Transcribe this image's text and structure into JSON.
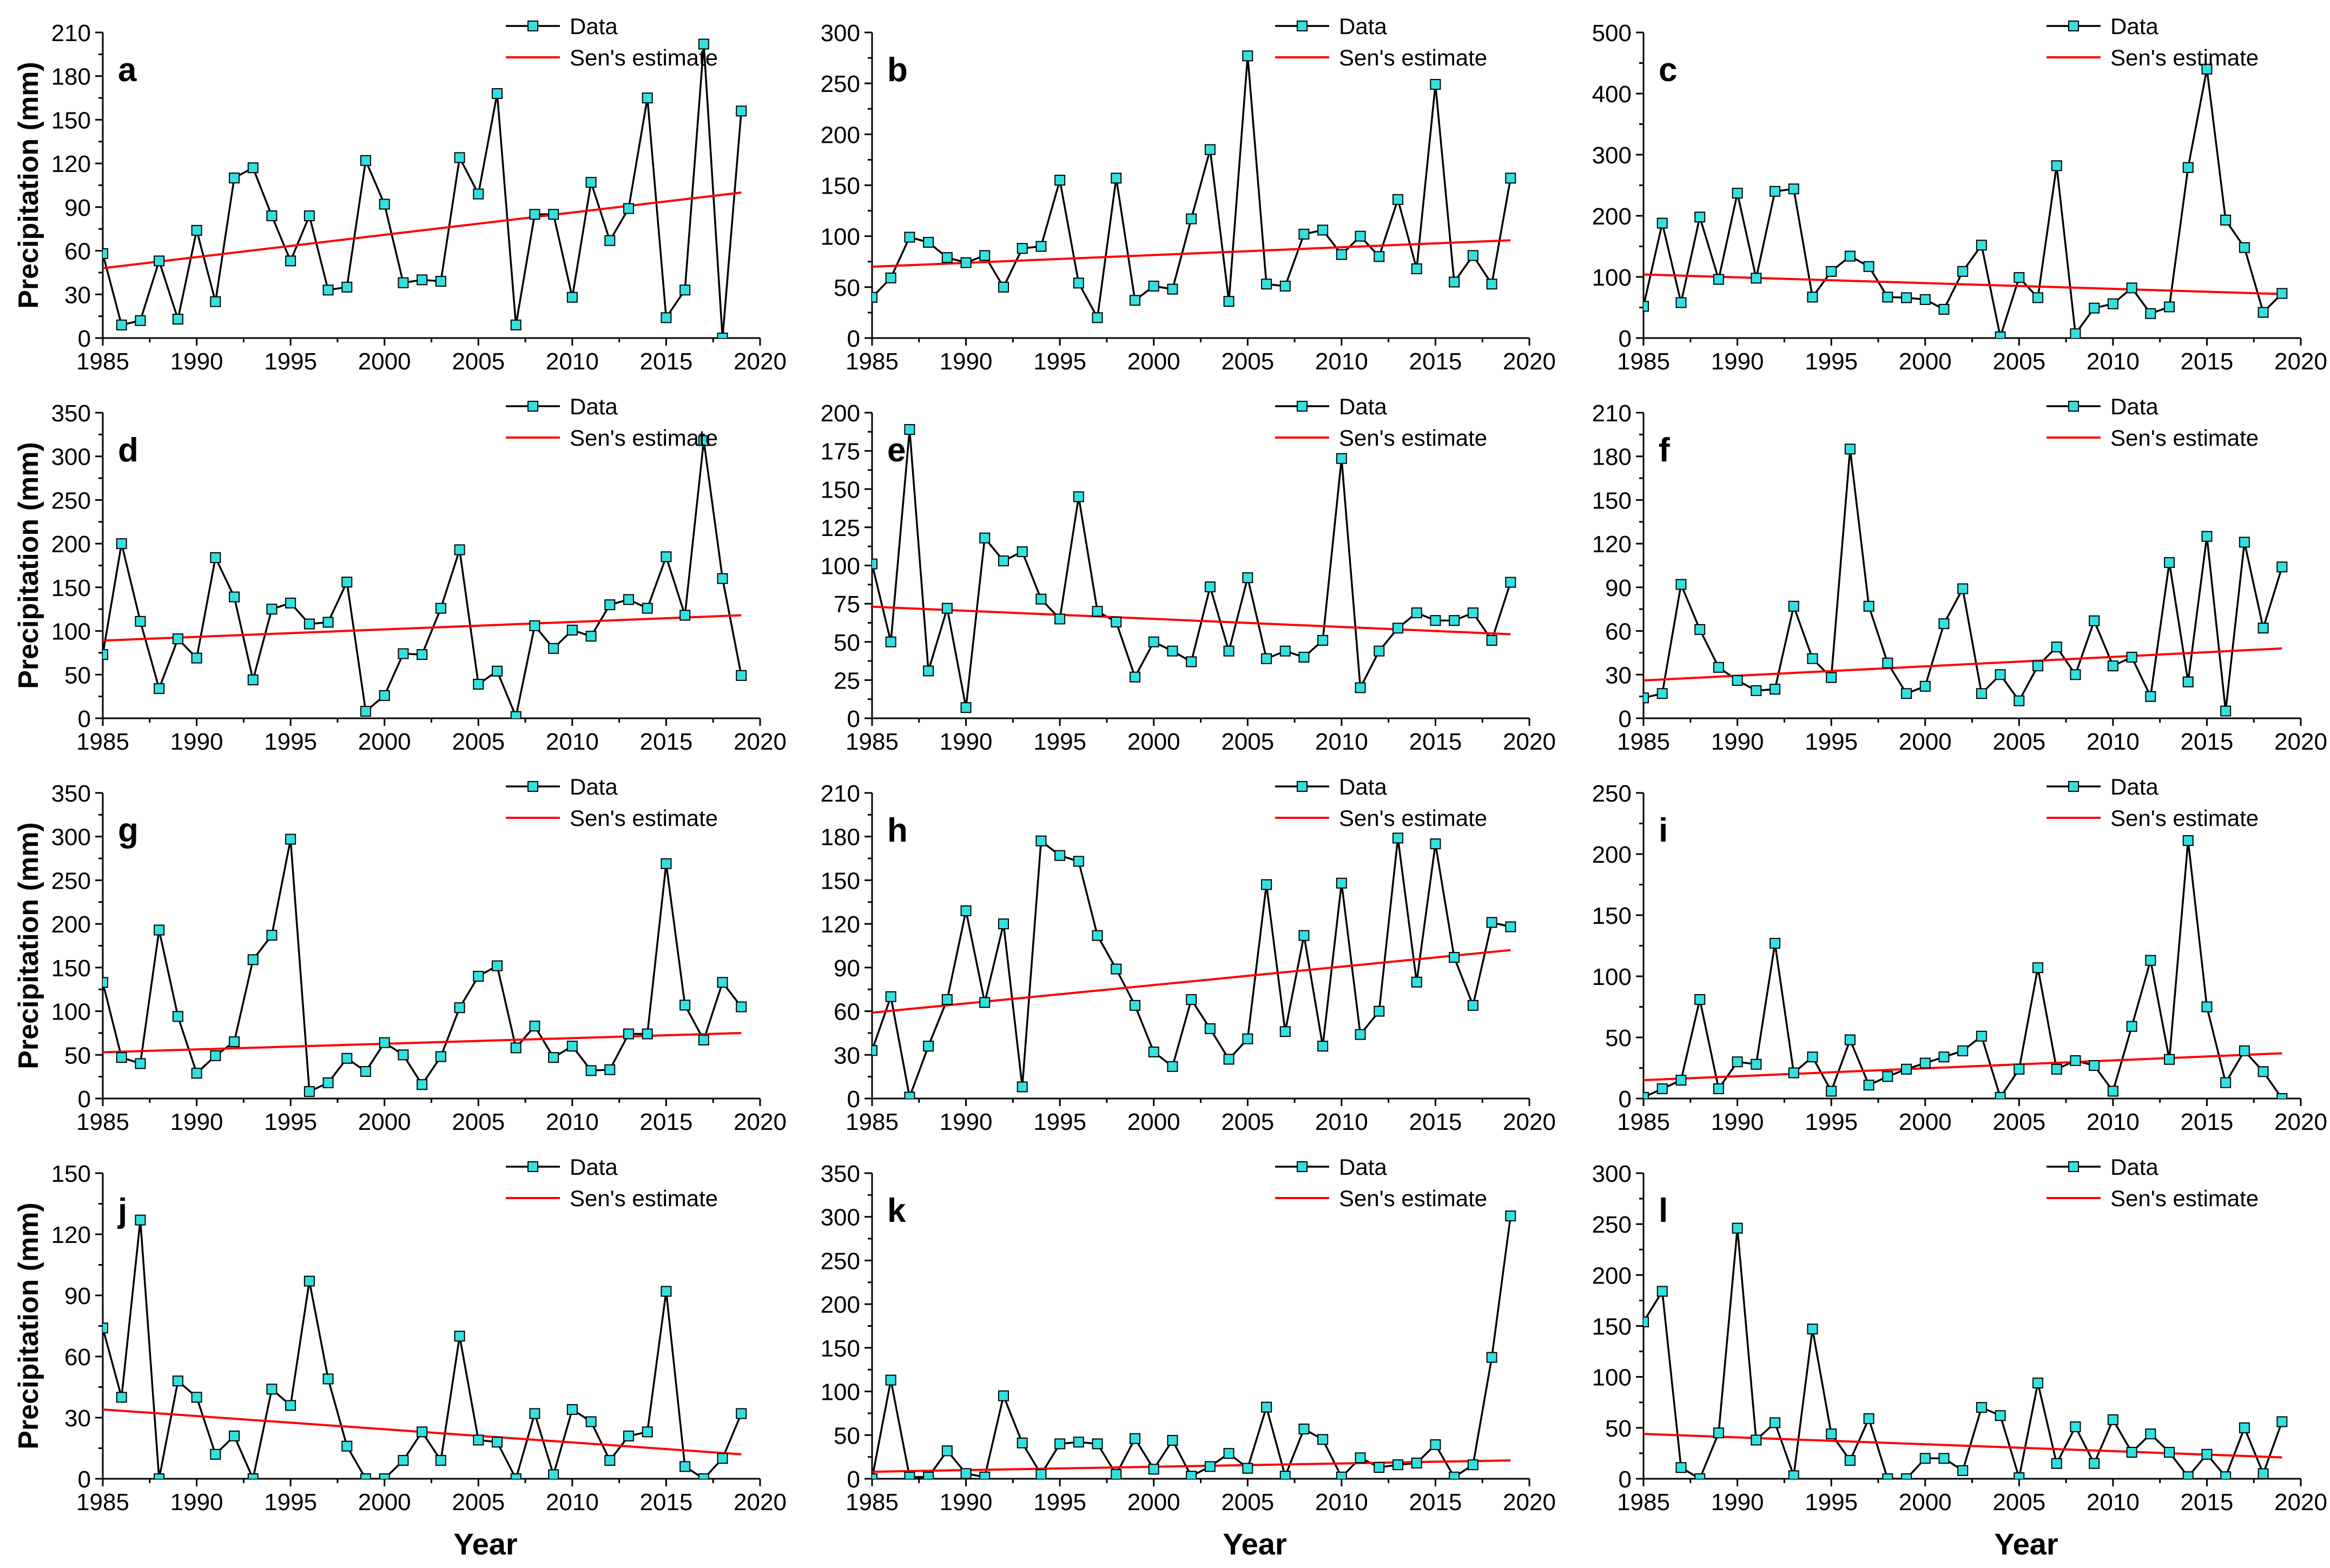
{
  "figure": {
    "y_axis_label": "Precipitation (mm)",
    "x_axis_label": "Year",
    "legend_data": "Data",
    "legend_trend": "Sen's estimate",
    "colors": {
      "data_marker": "#33e0e0",
      "data_line": "#000000",
      "trend_line": "#ff0000"
    }
  },
  "chart_data": [
    {
      "panel": "a",
      "type": "line",
      "xlim": [
        1985,
        2020
      ],
      "xticks": [
        1985,
        1990,
        1995,
        2000,
        2005,
        2010,
        2015,
        2020
      ],
      "ylim": [
        0,
        210
      ],
      "yticks": [
        0,
        30,
        60,
        90,
        120,
        150,
        180,
        210
      ],
      "ylabel": "Precipitation (mm)",
      "xlabel": "",
      "x": [
        1985,
        1986,
        1987,
        1988,
        1989,
        1990,
        1991,
        1992,
        1993,
        1994,
        1995,
        1996,
        1997,
        1998,
        1999,
        2000,
        2001,
        2002,
        2003,
        2004,
        2005,
        2006,
        2007,
        2008,
        2009,
        2010,
        2011,
        2012,
        2013,
        2014,
        2015,
        2016,
        2017,
        2018,
        2019
      ],
      "values": [
        58,
        9,
        12,
        53,
        13,
        74,
        25,
        110,
        117,
        84,
        53,
        84,
        33,
        35,
        122,
        92,
        38,
        40,
        39,
        124,
        99,
        168,
        9,
        85,
        85,
        28,
        107,
        67,
        89,
        165,
        14,
        33,
        202,
        0,
        156
      ],
      "trend": {
        "name": "Sen's estimate",
        "x": [
          1985,
          2019
        ],
        "y": [
          48,
          100
        ]
      }
    },
    {
      "panel": "b",
      "type": "line",
      "xlim": [
        1985,
        2020
      ],
      "xticks": [
        1985,
        1990,
        1995,
        2000,
        2005,
        2010,
        2015,
        2020
      ],
      "ylim": [
        0,
        300
      ],
      "yticks": [
        0,
        50,
        100,
        150,
        200,
        250,
        300
      ],
      "ylabel": "",
      "xlabel": "",
      "x": [
        1985,
        1986,
        1987,
        1988,
        1989,
        1990,
        1991,
        1992,
        1993,
        1994,
        1995,
        1996,
        1997,
        1998,
        1999,
        2000,
        2001,
        2002,
        2003,
        2004,
        2005,
        2006,
        2007,
        2008,
        2009,
        2010,
        2011,
        2012,
        2013,
        2014,
        2015,
        2016,
        2017,
        2018,
        2019
      ],
      "values": [
        40,
        59,
        99,
        94,
        79,
        74,
        81,
        50,
        88,
        90,
        155,
        54,
        20,
        157,
        37,
        51,
        48,
        117,
        185,
        36,
        277,
        53,
        51,
        102,
        106,
        82,
        100,
        80,
        136,
        68,
        249,
        55,
        81,
        53,
        157
      ],
      "trend": {
        "name": "Sen's estimate",
        "x": [
          1985,
          2019
        ],
        "y": [
          70,
          96
        ]
      }
    },
    {
      "panel": "c",
      "type": "line",
      "xlim": [
        1985,
        2020
      ],
      "xticks": [
        1985,
        1990,
        1995,
        2000,
        2005,
        2010,
        2015,
        2020
      ],
      "ylim": [
        0,
        500
      ],
      "yticks": [
        0,
        100,
        200,
        300,
        400,
        500
      ],
      "ylabel": "",
      "xlabel": "",
      "x": [
        1985,
        1986,
        1987,
        1988,
        1989,
        1990,
        1991,
        1992,
        1993,
        1994,
        1995,
        1996,
        1997,
        1998,
        1999,
        2000,
        2001,
        2002,
        2003,
        2004,
        2005,
        2006,
        2007,
        2008,
        2009,
        2010,
        2011,
        2012,
        2013,
        2014,
        2015,
        2016,
        2017,
        2018,
        2019
      ],
      "values": [
        52,
        188,
        58,
        198,
        96,
        237,
        98,
        240,
        244,
        67,
        109,
        134,
        117,
        67,
        66,
        63,
        47,
        109,
        152,
        2,
        99,
        66,
        282,
        7,
        49,
        56,
        82,
        40,
        51,
        279,
        440,
        193,
        148,
        42,
        73
      ],
      "trend": {
        "name": "Sen's estimate",
        "x": [
          1985,
          2019
        ],
        "y": [
          104,
          72
        ]
      }
    },
    {
      "panel": "d",
      "type": "line",
      "xlim": [
        1985,
        2020
      ],
      "xticks": [
        1985,
        1990,
        1995,
        2000,
        2005,
        2010,
        2015,
        2020
      ],
      "ylim": [
        0,
        350
      ],
      "yticks": [
        0,
        50,
        100,
        150,
        200,
        250,
        300,
        350
      ],
      "ylabel": "Precipitation (mm)",
      "xlabel": "",
      "x": [
        1985,
        1986,
        1987,
        1988,
        1989,
        1990,
        1991,
        1992,
        1993,
        1994,
        1995,
        1996,
        1997,
        1998,
        1999,
        2000,
        2001,
        2002,
        2003,
        2004,
        2005,
        2006,
        2007,
        2008,
        2009,
        2010,
        2011,
        2012,
        2013,
        2014,
        2015,
        2016,
        2017,
        2018,
        2019
      ],
      "values": [
        73,
        200,
        111,
        34,
        91,
        69,
        184,
        139,
        44,
        125,
        132,
        108,
        110,
        156,
        8,
        26,
        74,
        73,
        126,
        193,
        39,
        54,
        2,
        106,
        80,
        101,
        94,
        130,
        136,
        126,
        185,
        118,
        318,
        160,
        49
      ],
      "trend": {
        "name": "Sen's estimate",
        "x": [
          1985,
          2019
        ],
        "y": [
          89,
          118
        ]
      }
    },
    {
      "panel": "e",
      "type": "line",
      "xlim": [
        1985,
        2020
      ],
      "xticks": [
        1985,
        1990,
        1995,
        2000,
        2005,
        2010,
        2015,
        2020
      ],
      "ylim": [
        0,
        200
      ],
      "yticks": [
        0,
        25,
        50,
        75,
        100,
        125,
        150,
        175,
        200
      ],
      "ylabel": "",
      "xlabel": "",
      "x": [
        1985,
        1986,
        1987,
        1988,
        1989,
        1990,
        1991,
        1992,
        1993,
        1994,
        1995,
        1996,
        1997,
        1998,
        1999,
        2000,
        2001,
        2002,
        2003,
        2004,
        2005,
        2006,
        2007,
        2008,
        2009,
        2010,
        2011,
        2012,
        2013,
        2014,
        2015,
        2016,
        2017,
        2018,
        2019
      ],
      "values": [
        101,
        50,
        189,
        31,
        72,
        7,
        118,
        103,
        109,
        78,
        65,
        145,
        70,
        63,
        27,
        50,
        44,
        37,
        86,
        44,
        92,
        39,
        44,
        40,
        51,
        170,
        20,
        44,
        59,
        69,
        64,
        64,
        69,
        51,
        89
      ],
      "trend": {
        "name": "Sen's estimate",
        "x": [
          1985,
          2019
        ],
        "y": [
          73,
          55
        ]
      }
    },
    {
      "panel": "f",
      "type": "line",
      "xlim": [
        1985,
        2020
      ],
      "xticks": [
        1985,
        1990,
        1995,
        2000,
        2005,
        2010,
        2015,
        2020
      ],
      "ylim": [
        0,
        210
      ],
      "yticks": [
        0,
        30,
        60,
        90,
        120,
        150,
        180,
        210
      ],
      "ylabel": "",
      "xlabel": "",
      "x": [
        1985,
        1986,
        1987,
        1988,
        1989,
        1990,
        1991,
        1992,
        1993,
        1994,
        1995,
        1996,
        1997,
        1998,
        1999,
        2000,
        2001,
        2002,
        2003,
        2004,
        2005,
        2006,
        2007,
        2008,
        2009,
        2010,
        2011,
        2012,
        2013,
        2014,
        2015,
        2016,
        2017,
        2018,
        2019
      ],
      "values": [
        14,
        17,
        92,
        61,
        35,
        26,
        19,
        20,
        77,
        41,
        28,
        185,
        77,
        38,
        17,
        22,
        65,
        89,
        17,
        30,
        12,
        36,
        49,
        30,
        67,
        36,
        42,
        15,
        107,
        25,
        125,
        5,
        121,
        62,
        104
      ],
      "trend": {
        "name": "Sen's estimate",
        "x": [
          1985,
          2019
        ],
        "y": [
          26,
          48
        ]
      }
    },
    {
      "panel": "g",
      "type": "line",
      "xlim": [
        1985,
        2020
      ],
      "xticks": [
        1985,
        1990,
        1995,
        2000,
        2005,
        2010,
        2015,
        2020
      ],
      "ylim": [
        0,
        350
      ],
      "yticks": [
        0,
        50,
        100,
        150,
        200,
        250,
        300,
        350
      ],
      "ylabel": "Precipitation (mm)",
      "xlabel": "",
      "x": [
        1985,
        1986,
        1987,
        1988,
        1989,
        1990,
        1991,
        1992,
        1993,
        1994,
        1995,
        1996,
        1997,
        1998,
        1999,
        2000,
        2001,
        2002,
        2003,
        2004,
        2005,
        2006,
        2007,
        2008,
        2009,
        2010,
        2011,
        2012,
        2013,
        2014,
        2015,
        2016,
        2017,
        2018,
        2019
      ],
      "values": [
        133,
        47,
        40,
        193,
        94,
        29,
        49,
        65,
        159,
        187,
        297,
        8,
        18,
        46,
        31,
        64,
        50,
        16,
        48,
        104,
        140,
        152,
        58,
        83,
        47,
        60,
        32,
        33,
        74,
        74,
        269,
        107,
        67,
        133,
        105
      ],
      "trend": {
        "name": "Sen's estimate",
        "x": [
          1985,
          2019
        ],
        "y": [
          53,
          75
        ]
      }
    },
    {
      "panel": "h",
      "type": "line",
      "xlim": [
        1985,
        2020
      ],
      "xticks": [
        1985,
        1990,
        1995,
        2000,
        2005,
        2010,
        2015,
        2020
      ],
      "ylim": [
        0,
        210
      ],
      "yticks": [
        0,
        30,
        60,
        90,
        120,
        150,
        180,
        210
      ],
      "ylabel": "",
      "xlabel": "",
      "x": [
        1985,
        1986,
        1987,
        1988,
        1989,
        1990,
        1991,
        1992,
        1993,
        1994,
        1995,
        1996,
        1997,
        1998,
        1999,
        2000,
        2001,
        2002,
        2003,
        2004,
        2005,
        2006,
        2007,
        2008,
        2009,
        2010,
        2011,
        2012,
        2013,
        2014,
        2015,
        2016,
        2017,
        2018,
        2019
      ],
      "values": [
        33,
        70,
        1,
        36,
        68,
        129,
        66,
        120,
        8,
        177,
        167,
        163,
        112,
        89,
        64,
        32,
        22,
        68,
        48,
        27,
        41,
        147,
        46,
        112,
        36,
        148,
        44,
        60,
        179,
        80,
        175,
        97,
        64,
        121,
        118
      ],
      "trend": {
        "name": "Sen's estimate",
        "x": [
          1985,
          2019
        ],
        "y": [
          59,
          102
        ]
      }
    },
    {
      "panel": "i",
      "type": "line",
      "xlim": [
        1985,
        2020
      ],
      "xticks": [
        1985,
        1990,
        1995,
        2000,
        2005,
        2010,
        2015,
        2020
      ],
      "ylim": [
        0,
        250
      ],
      "yticks": [
        0,
        50,
        100,
        150,
        200,
        250
      ],
      "ylabel": "",
      "xlabel": "",
      "x": [
        1985,
        1986,
        1987,
        1988,
        1989,
        1990,
        1991,
        1992,
        1993,
        1994,
        1995,
        1996,
        1997,
        1998,
        1999,
        2000,
        2001,
        2002,
        2003,
        2004,
        2005,
        2006,
        2007,
        2008,
        2009,
        2010,
        2011,
        2012,
        2013,
        2014,
        2015,
        2016,
        2017,
        2018,
        2019
      ],
      "values": [
        1,
        8,
        15,
        81,
        8,
        30,
        28,
        127,
        21,
        34,
        6,
        48,
        11,
        18,
        24,
        29,
        34,
        39,
        51,
        1,
        24,
        107,
        24,
        31,
        27,
        6,
        59,
        113,
        32,
        211,
        75,
        13,
        39,
        22,
        0
      ],
      "trend": {
        "name": "Sen's estimate",
        "x": [
          1985,
          2019
        ],
        "y": [
          15,
          37
        ]
      }
    },
    {
      "panel": "j",
      "type": "line",
      "xlim": [
        1985,
        2020
      ],
      "xticks": [
        1985,
        1990,
        1995,
        2000,
        2005,
        2010,
        2015,
        2020
      ],
      "ylim": [
        0,
        150
      ],
      "yticks": [
        0,
        30,
        60,
        90,
        120,
        150
      ],
      "ylabel": "Precipitation (mm)",
      "xlabel": "Year",
      "x": [
        1985,
        1986,
        1987,
        1988,
        1989,
        1990,
        1991,
        1992,
        1993,
        1994,
        1995,
        1996,
        1997,
        1998,
        1999,
        2000,
        2001,
        2002,
        2003,
        2004,
        2005,
        2006,
        2007,
        2008,
        2009,
        2010,
        2011,
        2012,
        2013,
        2014,
        2015,
        2016,
        2017,
        2018,
        2019
      ],
      "values": [
        74,
        40,
        127,
        0,
        48,
        40,
        12,
        21,
        0,
        44,
        36,
        97,
        49,
        16,
        0,
        0,
        9,
        23,
        9,
        70,
        19,
        18,
        0,
        32,
        2,
        34,
        28,
        9,
        21,
        23,
        92,
        6,
        0,
        10,
        32
      ],
      "trend": {
        "name": "Sen's estimate",
        "x": [
          1985,
          2019
        ],
        "y": [
          34,
          12
        ]
      }
    },
    {
      "panel": "k",
      "type": "line",
      "xlim": [
        1985,
        2020
      ],
      "xticks": [
        1985,
        1990,
        1995,
        2000,
        2005,
        2010,
        2015,
        2020
      ],
      "ylim": [
        0,
        350
      ],
      "yticks": [
        0,
        50,
        100,
        150,
        200,
        250,
        300,
        350
      ],
      "ylabel": "",
      "xlabel": "Year",
      "x": [
        1985,
        1986,
        1987,
        1988,
        1989,
        1990,
        1991,
        1992,
        1993,
        1994,
        1995,
        1996,
        1997,
        1998,
        1999,
        2000,
        2001,
        2002,
        2003,
        2004,
        2005,
        2006,
        2007,
        2008,
        2009,
        2010,
        2011,
        2012,
        2013,
        2014,
        2015,
        2016,
        2017,
        2018,
        2019
      ],
      "values": [
        0,
        113,
        2,
        2,
        32,
        6,
        2,
        95,
        41,
        5,
        40,
        42,
        40,
        5,
        46,
        11,
        44,
        3,
        14,
        29,
        12,
        82,
        3,
        57,
        45,
        2,
        24,
        13,
        16,
        18,
        39,
        2,
        16,
        139,
        301
      ],
      "trend": {
        "name": "Sen's estimate",
        "x": [
          1985,
          2019
        ],
        "y": [
          8,
          21
        ]
      }
    },
    {
      "panel": "l",
      "type": "line",
      "xlim": [
        1985,
        2020
      ],
      "xticks": [
        1985,
        1990,
        1995,
        2000,
        2005,
        2010,
        2015,
        2020
      ],
      "ylim": [
        0,
        300
      ],
      "yticks": [
        0,
        50,
        100,
        150,
        200,
        250,
        300
      ],
      "ylabel": "",
      "xlabel": "Year",
      "x": [
        1985,
        1986,
        1987,
        1988,
        1989,
        1990,
        1991,
        1992,
        1993,
        1994,
        1995,
        1996,
        1997,
        1998,
        1999,
        2000,
        2001,
        2002,
        2003,
        2004,
        2005,
        2006,
        2007,
        2008,
        2009,
        2010,
        2011,
        2012,
        2013,
        2014,
        2015,
        2016,
        2017,
        2018,
        2019
      ],
      "values": [
        154,
        184,
        11,
        0,
        45,
        246,
        38,
        55,
        3,
        147,
        44,
        18,
        59,
        0,
        0,
        20,
        20,
        8,
        70,
        62,
        1,
        94,
        15,
        51,
        15,
        58,
        26,
        44,
        26,
        2,
        24,
        2,
        50,
        5,
        56
      ],
      "trend": {
        "name": "Sen's estimate",
        "x": [
          1985,
          2019
        ],
        "y": [
          44,
          21
        ]
      }
    }
  ]
}
